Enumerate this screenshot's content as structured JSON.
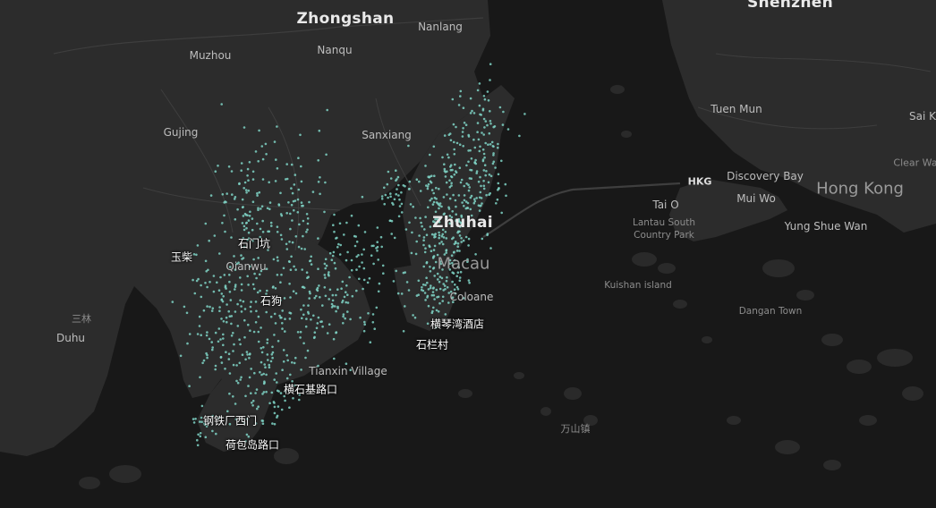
{
  "map": {
    "theme": "dark",
    "colors": {
      "water": "#181818",
      "land": "#2c2c2c",
      "island": "#2a2a2a",
      "roads": "#3e3e3e",
      "points": "#7fd3c6"
    }
  },
  "places": [
    {
      "key": "zhongshan",
      "name": "Zhongshan"
    },
    {
      "key": "nanlang",
      "name": "Nanlang"
    },
    {
      "key": "shenzhen",
      "name": "Shenzhen"
    },
    {
      "key": "muzhou",
      "name": "Muzhou"
    },
    {
      "key": "nanqu",
      "name": "Nanqu"
    },
    {
      "key": "gujing",
      "name": "Gujing"
    },
    {
      "key": "sanxiang",
      "name": "Sanxiang"
    },
    {
      "key": "tuen-mun",
      "name": "Tuen Mun"
    },
    {
      "key": "sai-k",
      "name": "Sai K"
    },
    {
      "key": "clear-wa",
      "name": "Clear Wa"
    },
    {
      "key": "discovery-bay",
      "name": "Discovery Bay"
    },
    {
      "key": "hkg",
      "name": "HKG"
    },
    {
      "key": "hong-kong",
      "name": "Hong Kong"
    },
    {
      "key": "tai-o",
      "name": "Tai O"
    },
    {
      "key": "mui-wo",
      "name": "Mui Wo"
    },
    {
      "key": "lantau-1",
      "name": "Lantau South"
    },
    {
      "key": "lantau-2",
      "name": "Country Park"
    },
    {
      "key": "yung-shue-wan",
      "name": "Yung Shue Wan"
    },
    {
      "key": "zhuhai",
      "name": "Zhuhai"
    },
    {
      "key": "macau",
      "name": "Macau"
    },
    {
      "key": "coloane",
      "name": "Coloane"
    },
    {
      "key": "qianwu",
      "name": "Qianwu"
    },
    {
      "key": "kuishan-island",
      "name": "Kuishan island"
    },
    {
      "key": "dangan-town",
      "name": "Dangan Town"
    },
    {
      "key": "sanlin",
      "name": "三林"
    },
    {
      "key": "duhu",
      "name": "Duhu"
    },
    {
      "key": "tianxin-village",
      "name": "Tianxin Village"
    },
    {
      "key": "wanshan",
      "name": "万山镇"
    }
  ],
  "stops": [
    {
      "key": "yuchai",
      "name": "玉柴"
    },
    {
      "key": "shimenkeng",
      "name": "石门坑"
    },
    {
      "key": "shigou",
      "name": "石狗"
    },
    {
      "key": "hengqin-bay-hotel",
      "name": "横琴湾酒店"
    },
    {
      "key": "shilancun",
      "name": "石栏村"
    },
    {
      "key": "hengshiji-crossing",
      "name": "横石基路口"
    },
    {
      "key": "steel-factory-west-gate",
      "name": "钢铁厂西门"
    },
    {
      "key": "hebaodao-crossing",
      "name": "荷包岛路口"
    }
  ]
}
